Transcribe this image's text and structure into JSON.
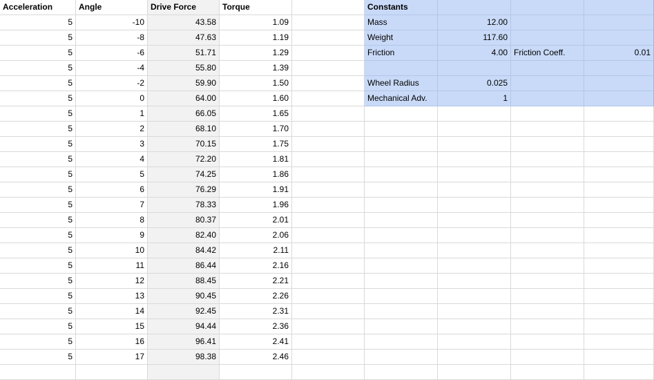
{
  "table": {
    "headers": [
      "Acceleration",
      "Angle",
      "Drive Force",
      "Torque"
    ],
    "rows": [
      [
        "5",
        "-10",
        "43.58",
        "1.09"
      ],
      [
        "5",
        "-8",
        "47.63",
        "1.19"
      ],
      [
        "5",
        "-6",
        "51.71",
        "1.29"
      ],
      [
        "5",
        "-4",
        "55.80",
        "1.39"
      ],
      [
        "5",
        "-2",
        "59.90",
        "1.50"
      ],
      [
        "5",
        "0",
        "64.00",
        "1.60"
      ],
      [
        "5",
        "1",
        "66.05",
        "1.65"
      ],
      [
        "5",
        "2",
        "68.10",
        "1.70"
      ],
      [
        "5",
        "3",
        "70.15",
        "1.75"
      ],
      [
        "5",
        "4",
        "72.20",
        "1.81"
      ],
      [
        "5",
        "5",
        "74.25",
        "1.86"
      ],
      [
        "5",
        "6",
        "76.29",
        "1.91"
      ],
      [
        "5",
        "7",
        "78.33",
        "1.96"
      ],
      [
        "5",
        "8",
        "80.37",
        "2.01"
      ],
      [
        "5",
        "9",
        "82.40",
        "2.06"
      ],
      [
        "5",
        "10",
        "84.42",
        "2.11"
      ],
      [
        "5",
        "11",
        "86.44",
        "2.16"
      ],
      [
        "5",
        "12",
        "88.45",
        "2.21"
      ],
      [
        "5",
        "13",
        "90.45",
        "2.26"
      ],
      [
        "5",
        "14",
        "92.45",
        "2.31"
      ],
      [
        "5",
        "15",
        "94.44",
        "2.36"
      ],
      [
        "5",
        "16",
        "96.41",
        "2.41"
      ],
      [
        "5",
        "17",
        "98.38",
        "2.46"
      ]
    ]
  },
  "constants": {
    "title": "Constants",
    "mass_label": "Mass",
    "mass_value": "12.00",
    "weight_label": "Weight",
    "weight_value": "117.60",
    "friction_label": "Friction",
    "friction_value": "4.00",
    "friction_coeff_label": "Friction Coeff.",
    "friction_coeff_value": "0.01",
    "wheel_radius_label": "Wheel Radius",
    "wheel_radius_value": "0.025",
    "mech_adv_label": "Mechanical Adv.",
    "mech_adv_value": "1"
  },
  "colors": {
    "constants_fill": "#c9daf8",
    "force_column_fill": "#f2f2f2",
    "gridline": "#d9d9d9"
  }
}
